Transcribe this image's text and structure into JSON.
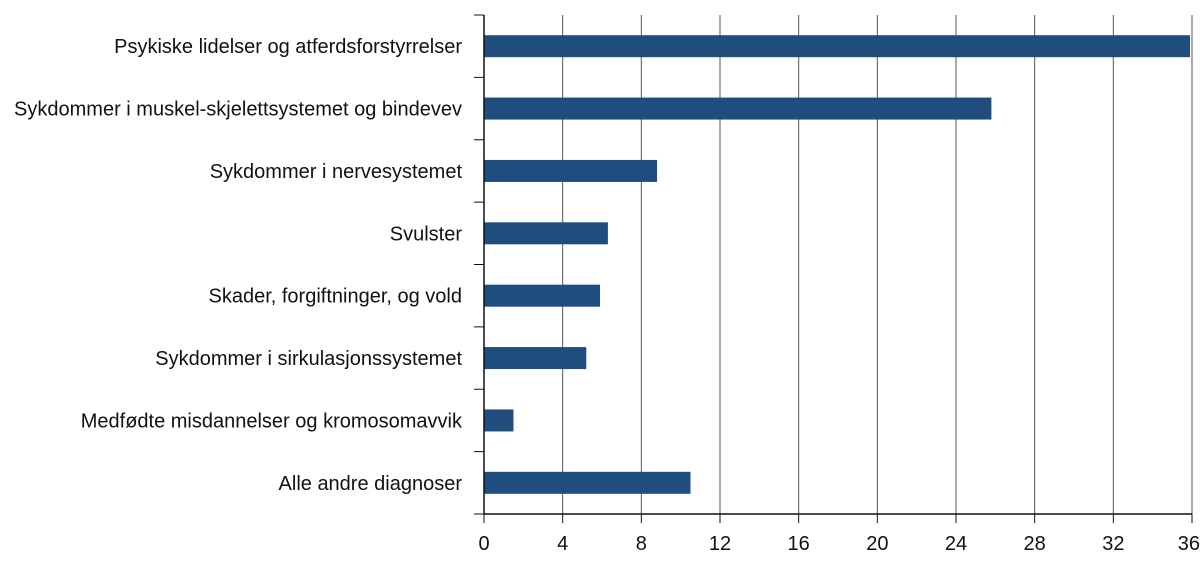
{
  "chart_data": {
    "type": "bar",
    "orientation": "horizontal",
    "categories": [
      "Psykiske lidelser og atferdsforstyrrelser",
      "Sykdommer i muskel-skjelettsystemet og bindevev",
      "Sykdommer i nervesystemet",
      "Svulster",
      "Skader, forgiftninger, og vold",
      "Sykdommer i sirkulasjonssystemet",
      "Medfødte misdannelser og kromosomavvik",
      "Alle andre diagnoser"
    ],
    "values": [
      35.9,
      25.8,
      8.8,
      6.3,
      5.9,
      5.2,
      1.5,
      10.5
    ],
    "xlim": [
      0,
      36
    ],
    "xticks": [
      0,
      4,
      8,
      12,
      16,
      20,
      24,
      28,
      32,
      36
    ],
    "title": "",
    "xlabel": "",
    "ylabel": "",
    "grid": "vertical",
    "bar_color": "#1f4e7e",
    "grid_color": "#555555"
  }
}
